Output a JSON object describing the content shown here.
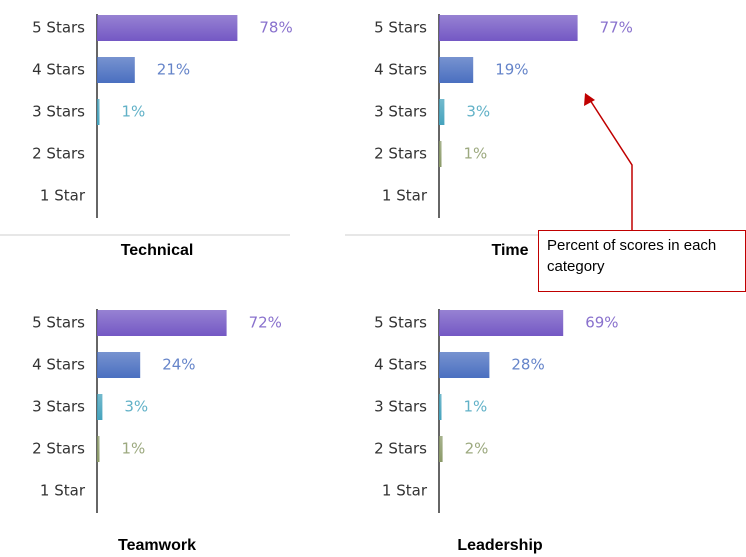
{
  "chart_data": [
    {
      "type": "bar",
      "title": "Technical",
      "categories": [
        "5 Stars",
        "4 Stars",
        "3 Stars",
        "2 Stars",
        "1 Star"
      ],
      "values": [
        78,
        21,
        1,
        null,
        null
      ],
      "value_labels": [
        "78%",
        "21%",
        "1%",
        null,
        null
      ],
      "colors": [
        "#7458c4",
        "#4a6fc0",
        "#45a3bd",
        "#8b9a68",
        "#999999"
      ]
    },
    {
      "type": "bar",
      "title": "Time",
      "categories": [
        "5 Stars",
        "4 Stars",
        "3 Stars",
        "2 Stars",
        "1 Star"
      ],
      "values": [
        77,
        19,
        3,
        1,
        null
      ],
      "value_labels": [
        "77%",
        "19%",
        "3%",
        "1%",
        null
      ],
      "colors": [
        "#7458c4",
        "#4a6fc0",
        "#45a3bd",
        "#8b9a68",
        "#999999"
      ]
    },
    {
      "type": "bar",
      "title": "Teamwork",
      "categories": [
        "5 Stars",
        "4 Stars",
        "3 Stars",
        "2 Stars",
        "1 Star"
      ],
      "values": [
        72,
        24,
        3,
        1,
        null
      ],
      "value_labels": [
        "72%",
        "24%",
        "3%",
        "1%",
        null
      ],
      "colors": [
        "#7458c4",
        "#4a6fc0",
        "#45a3bd",
        "#8b9a68",
        "#999999"
      ]
    },
    {
      "type": "bar",
      "title": "Leadership",
      "categories": [
        "5 Stars",
        "4 Stars",
        "3 Stars",
        "2 Stars",
        "1 Star"
      ],
      "values": [
        69,
        28,
        1,
        2,
        null
      ],
      "value_labels": [
        "69%",
        "28%",
        "1%",
        "2%",
        null
      ],
      "colors": [
        "#7458c4",
        "#4a6fc0",
        "#45a3bd",
        "#8b9a68",
        "#999999"
      ]
    }
  ],
  "annotation": "Percent of scores in each category"
}
